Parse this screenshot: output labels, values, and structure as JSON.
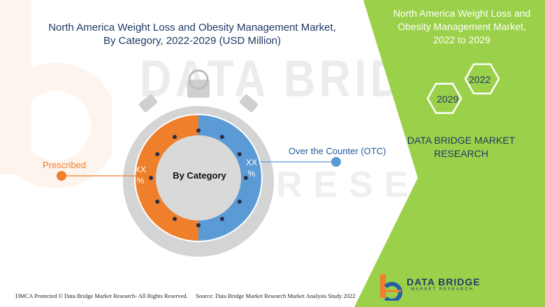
{
  "title_line1": "North America Weight Loss and Obesity Management Market,",
  "title_line2": "By Category, 2022-2029 (USD Million)",
  "side_panel": {
    "title_line1": "North America Weight Loss and",
    "title_line2": "Obesity Management Market,",
    "title_line3": "2022 to 2029",
    "year_top": "2022",
    "year_bottom": "2029",
    "brand_line1": "DATA BRIDGE MARKET",
    "brand_line2": "RESEARCH",
    "panel_color": "#9bd14a"
  },
  "watermark": {
    "line1": "DATA BRIDGE",
    "line2": "RESEARCH"
  },
  "chart_data": {
    "type": "pie",
    "center_label": "By Category",
    "categories": [
      "Prescribed",
      "Over the Counter (OTC)"
    ],
    "series": [
      {
        "name": "Prescribed",
        "value_label_line1": "XX",
        "value_label_line2": "%",
        "color": "#f07f2c",
        "share": 0.5
      },
      {
        "name": "Over the Counter (OTC)",
        "value_label_line1": "XX",
        "value_label_line2": "%",
        "color": "#5b9bd5",
        "share": 0.5
      }
    ]
  },
  "footer": {
    "left": "DMCA Protected © Data Bridge Market Research- All Rights Reserved.",
    "right": "Source: Data Bridge Market Research Market Analysis Study 2022"
  },
  "logo": {
    "name": "DATA BRIDGE",
    "tagline": "MARKET RESEARCH"
  }
}
